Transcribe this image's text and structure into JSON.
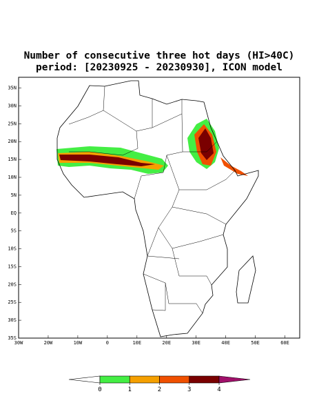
{
  "title_lines": [
    "Number of consecutive three hot days (HI>40C)",
    "period: [20230925 - 20230930], ICON model"
  ],
  "map": {
    "xlim": [
      -30,
      65
    ],
    "ylim": [
      -35,
      38
    ],
    "xticks": [
      {
        "value": -30,
        "label": "30W"
      },
      {
        "value": -20,
        "label": "20W"
      },
      {
        "value": -10,
        "label": "10W"
      },
      0,
      {
        "value": 10,
        "label": "10E"
      },
      {
        "value": 20,
        "label": "20E"
      },
      {
        "value": 30,
        "label": "30E"
      },
      {
        "value": 40,
        "label": "40E"
      },
      {
        "value": 50,
        "label": "50E"
      },
      {
        "value": 60,
        "label": "60E"
      }
    ],
    "yticks": [
      {
        "value": 35,
        "label": "35N"
      },
      {
        "value": 30,
        "label": "30N"
      },
      {
        "value": 25,
        "label": "25N"
      },
      {
        "value": 20,
        "label": "20N"
      },
      {
        "value": 15,
        "label": "15N"
      },
      {
        "value": 10,
        "label": "10N"
      },
      {
        "value": 5,
        "label": "5N"
      },
      {
        "value": 0,
        "label": "EQ"
      },
      {
        "value": -5,
        "label": "5S"
      },
      {
        "value": -10,
        "label": "10S"
      },
      {
        "value": -15,
        "label": "15S"
      },
      {
        "value": -20,
        "label": "20S"
      },
      {
        "value": -25,
        "label": "25S"
      },
      {
        "value": -30,
        "label": "30S"
      },
      {
        "value": -35,
        "label": "35S"
      }
    ]
  },
  "colorbar": {
    "levels": [
      0,
      1,
      2,
      3,
      4
    ],
    "colors": [
      "#ffffff",
      "#44ee44",
      "#f5a000",
      "#f05000",
      "#7a0000",
      "#a0106a"
    ]
  }
}
